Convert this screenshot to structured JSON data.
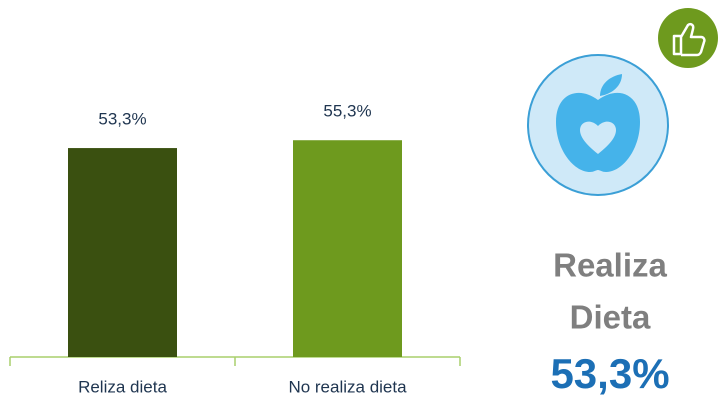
{
  "chart_data": {
    "type": "bar",
    "categories": [
      "Reliza dieta",
      "No realiza dieta"
    ],
    "values": [
      53.3,
      55.3
    ],
    "value_labels": [
      "53,3%",
      "55,3%"
    ],
    "colors": [
      "#3a5010",
      "#6e9a1e"
    ]
  },
  "side": {
    "lines": [
      "Realiza",
      "Dieta"
    ],
    "value": "53,3%"
  }
}
